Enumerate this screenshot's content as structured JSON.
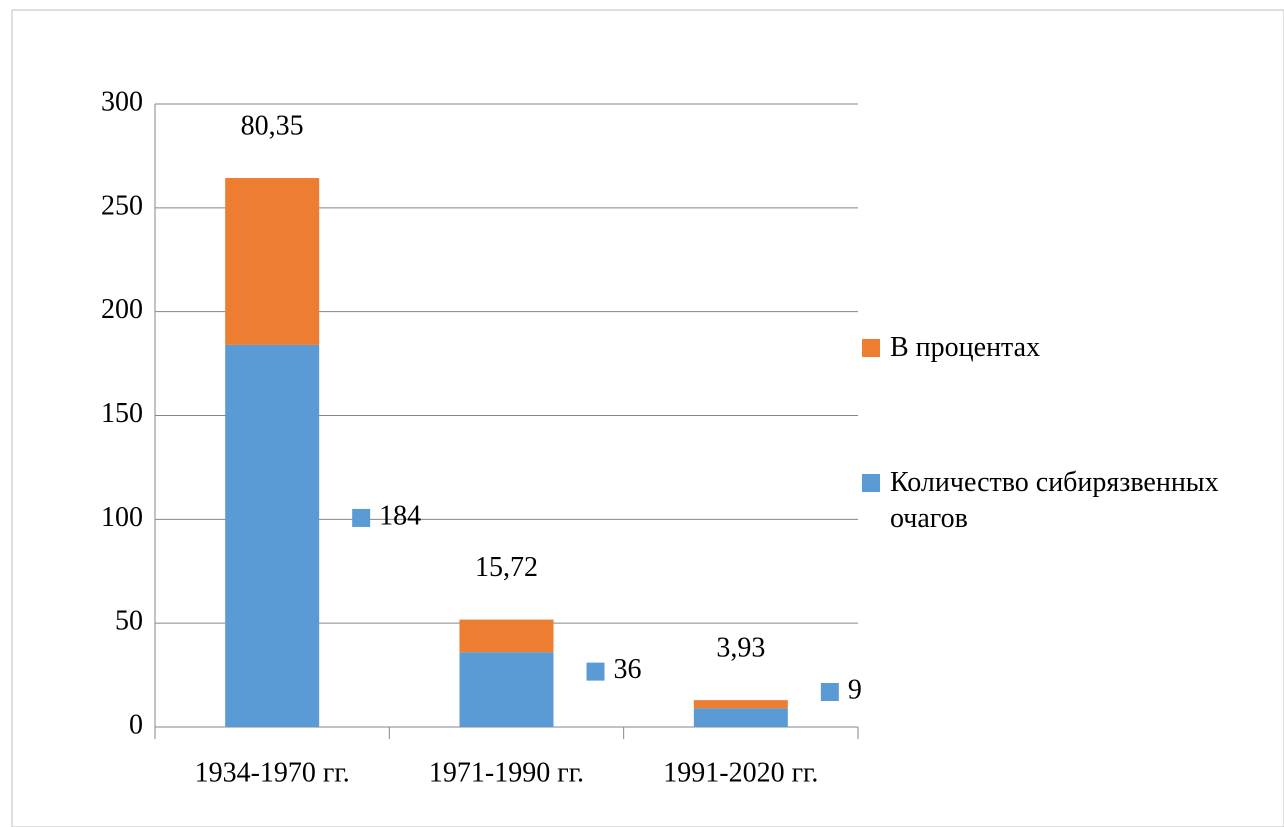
{
  "chart_data": {
    "type": "stacked_bar",
    "categories": [
      "1934-1970 гг.",
      "1971-1990 гг.",
      "1991-2020 гг."
    ],
    "series": [
      {
        "name": "Количество сибирязвенных очагов",
        "color": "#5b9bd5",
        "values": [
          184,
          36,
          9
        ]
      },
      {
        "name": "В процентах",
        "color": "#ed7d31",
        "values": [
          80.35,
          15.72,
          3.93
        ],
        "value_labels": [
          "80,35",
          "15,72",
          "3,93"
        ]
      }
    ],
    "ylim": [
      0,
      300
    ],
    "yticks": [
      0,
      50,
      100,
      150,
      200,
      250,
      300
    ],
    "grid": true,
    "legend": "right"
  }
}
